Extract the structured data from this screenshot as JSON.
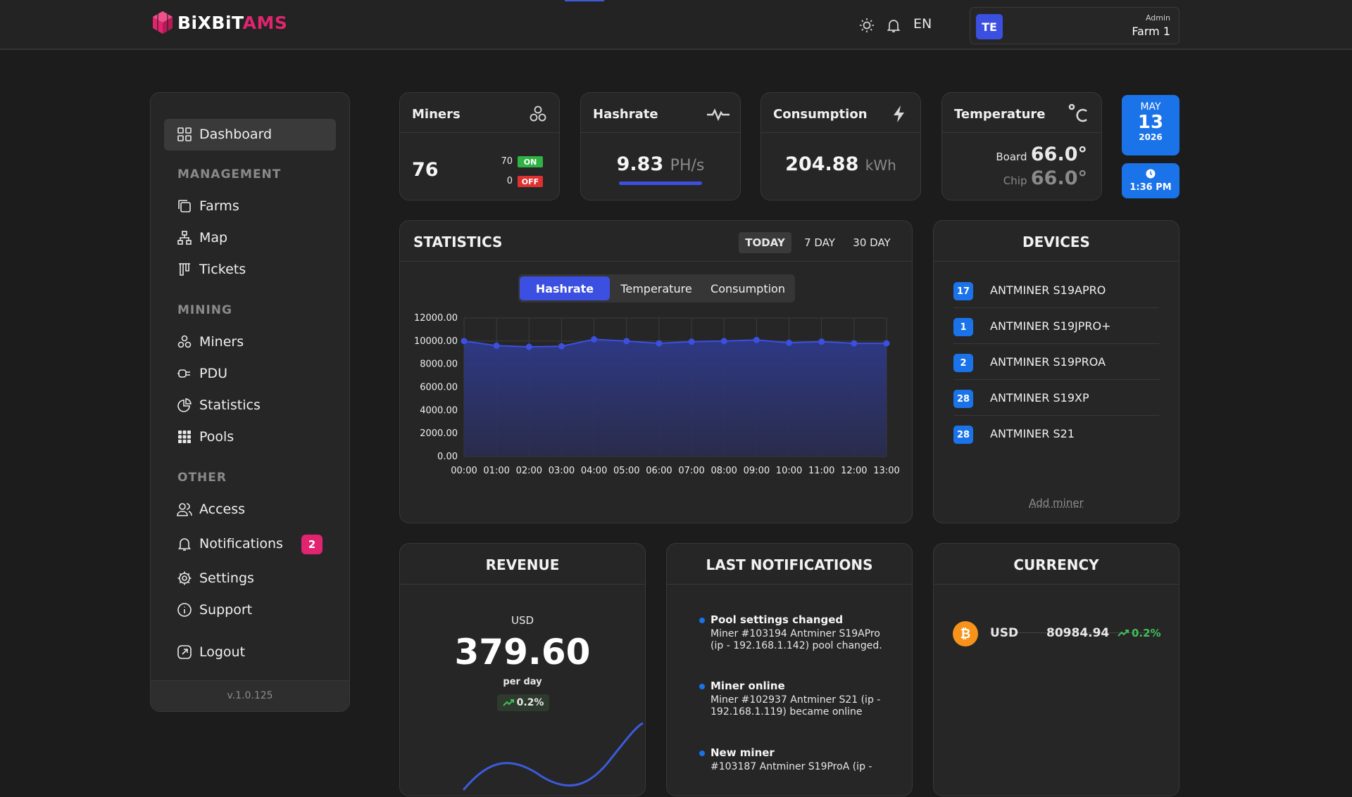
{
  "header": {
    "logo_part1": "BiXBiT",
    "logo_part2": "AMS",
    "language": "EN",
    "avatar_initials": "TE",
    "user_role": "Admin",
    "farm_name": "Farm 1"
  },
  "sidebar": {
    "dashboard": "Dashboard",
    "section_management": "MANAGEMENT",
    "farms": "Farms",
    "map": "Map",
    "tickets": "Tickets",
    "section_mining": "MINING",
    "miners": "Miners",
    "pdu": "PDU",
    "statistics": "Statistics",
    "pools": "Pools",
    "section_other": "OTHER",
    "access": "Access",
    "notifications": "Notifications",
    "notifications_count": "2",
    "settings": "Settings",
    "support": "Support",
    "logout": "Logout",
    "version": "v.1.0.125"
  },
  "cards": {
    "miners": {
      "title": "Miners",
      "total": "76",
      "on_count": "70",
      "on_label": "ON",
      "off_count": "0",
      "off_label": "OFF"
    },
    "hashrate": {
      "title": "Hashrate",
      "value": "9.83",
      "unit": "PH/s"
    },
    "consumption": {
      "title": "Consumption",
      "value": "204.88",
      "unit": "kWh"
    },
    "temperature": {
      "title": "Temperature",
      "board_label": "Board",
      "board_value": "66.0°",
      "chip_label": "Chip",
      "chip_value": "66.0°"
    }
  },
  "date": {
    "month": "MAY",
    "day": "13",
    "year": "2026",
    "time": "1:36 PM"
  },
  "statistics": {
    "title": "STATISTICS",
    "range_tabs": [
      "TODAY",
      "7 DAY",
      "30 DAY"
    ],
    "metric_tabs": [
      "Hashrate",
      "Temperature",
      "Consumption"
    ]
  },
  "chart_data": {
    "type": "area",
    "x": [
      "00:00",
      "01:00",
      "02:00",
      "03:00",
      "04:00",
      "05:00",
      "06:00",
      "07:00",
      "08:00",
      "09:00",
      "10:00",
      "11:00",
      "12:00",
      "13:00"
    ],
    "series": [
      {
        "values": [
          10000,
          9600,
          9500,
          9550,
          10150,
          10000,
          9800,
          9950,
          10000,
          10100,
          9850,
          9950,
          9800,
          9800
        ]
      }
    ],
    "ylim": [
      0,
      12000
    ],
    "y_ticks": [
      "0.00",
      "2000.00",
      "4000.00",
      "6000.00",
      "8000.00",
      "10000.00",
      "12000.00"
    ],
    "grid": true,
    "color": "#3b4fe0"
  },
  "devices": {
    "title": "DEVICES",
    "items": [
      {
        "count": "17",
        "name": "ANTMINER S19APRO"
      },
      {
        "count": "1",
        "name": "ANTMINER S19JPRO+"
      },
      {
        "count": "2",
        "name": "ANTMINER S19PROA"
      },
      {
        "count": "28",
        "name": "ANTMINER S19XP"
      },
      {
        "count": "28",
        "name": "ANTMINER S21"
      }
    ],
    "add_label": "Add miner"
  },
  "revenue": {
    "title": "REVENUE",
    "currency": "USD",
    "value": "379.60",
    "period": "per day",
    "change": "0.2%"
  },
  "last_notifications": {
    "title": "LAST NOTIFICATIONS",
    "items": [
      {
        "title": "Pool settings changed",
        "body": "Miner #103194 Antminer S19APro (ip - 192.168.1.142) pool changed."
      },
      {
        "title": "Miner online",
        "body": "Miner #102937 Antminer S21 (ip - 192.168.1.119) became online"
      },
      {
        "title": "New miner",
        "body": "#103187 Antminer S19ProA (ip -"
      }
    ]
  },
  "currency": {
    "title": "CURRENCY",
    "code": "USD",
    "rate": "80984.94",
    "change": "0.2%"
  },
  "colors": {
    "accent": "#1a73e8",
    "brand": "#e0246f",
    "on": "#2fb344",
    "off": "#e03131",
    "positive": "#40c057"
  }
}
